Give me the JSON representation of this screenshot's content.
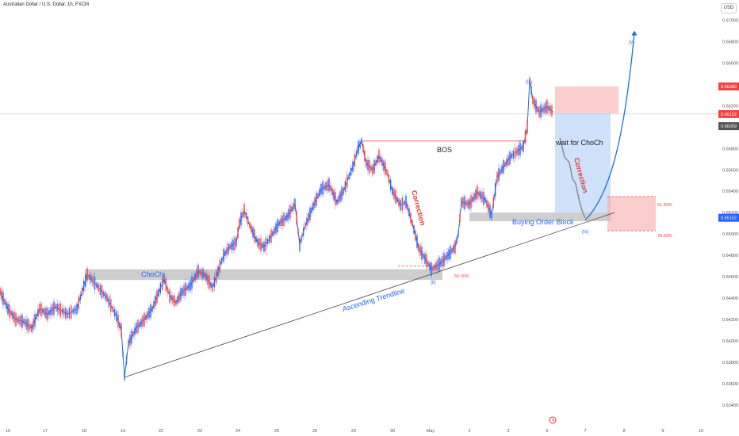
{
  "header": {
    "symbol_title": "Australian Dollar / U.S. Dollar, 1h, FXCM",
    "currency_button": "USD"
  },
  "chart_data": {
    "type": "candlestick",
    "title": "Australian Dollar / U.S. Dollar, 1h, FXCM",
    "ylim": [
      0.6337,
      0.671
    ],
    "y_ticks": [
      "0.67000",
      "0.66800",
      "0.66600",
      "0.66400",
      "0.66200",
      "0.66000",
      "0.65800",
      "0.65600",
      "0.65400",
      "0.65200",
      "0.65000",
      "0.64800",
      "0.64600",
      "0.64400",
      "0.64200",
      "0.64000",
      "0.63800",
      "0.63600",
      "0.63400"
    ],
    "x_ticks": [
      "16",
      "17",
      "18",
      "19",
      "22",
      "23",
      "24",
      "25",
      "26",
      "29",
      "30",
      "May",
      "2",
      "3",
      "6",
      "7",
      "8",
      "9",
      "10"
    ],
    "price_badges": [
      {
        "label": "0.66380",
        "value": 0.6638,
        "color": "#ef4444"
      },
      {
        "label": "0.66122",
        "value": 0.66122,
        "color": "#ef4444"
      },
      {
        "label": "0.66009",
        "value": 0.66009,
        "color": "#555555"
      },
      {
        "label": "0.65152",
        "value": 0.65152,
        "color": "#2962ff"
      }
    ],
    "price_path": [
      [
        0,
        0.6446
      ],
      [
        10,
        0.643
      ],
      [
        20,
        0.642
      ],
      [
        30,
        0.6418
      ],
      [
        40,
        0.6412
      ],
      [
        50,
        0.643
      ],
      [
        60,
        0.6425
      ],
      [
        70,
        0.6432
      ],
      [
        85,
        0.6425
      ],
      [
        97,
        0.643
      ],
      [
        110,
        0.6462
      ],
      [
        122,
        0.6452
      ],
      [
        135,
        0.644
      ],
      [
        147,
        0.6423
      ],
      [
        153,
        0.641
      ],
      [
        157,
        0.6366
      ],
      [
        162,
        0.6398
      ],
      [
        172,
        0.6412
      ],
      [
        182,
        0.642
      ],
      [
        192,
        0.643
      ],
      [
        200,
        0.6445
      ],
      [
        207,
        0.6458
      ],
      [
        214,
        0.6442
      ],
      [
        222,
        0.6436
      ],
      [
        230,
        0.6446
      ],
      [
        240,
        0.6452
      ],
      [
        250,
        0.6465
      ],
      [
        258,
        0.6462
      ],
      [
        268,
        0.645
      ],
      [
        275,
        0.6465
      ],
      [
        282,
        0.648
      ],
      [
        290,
        0.6488
      ],
      [
        298,
        0.6492
      ],
      [
        302,
        0.651
      ],
      [
        308,
        0.6522
      ],
      [
        315,
        0.6508
      ],
      [
        325,
        0.6492
      ],
      [
        333,
        0.6488
      ],
      [
        342,
        0.6498
      ],
      [
        352,
        0.651
      ],
      [
        362,
        0.6516
      ],
      [
        372,
        0.6528
      ],
      [
        378,
        0.649
      ],
      [
        385,
        0.6508
      ],
      [
        395,
        0.6526
      ],
      [
        405,
        0.6542
      ],
      [
        415,
        0.6546
      ],
      [
        425,
        0.653
      ],
      [
        433,
        0.654
      ],
      [
        445,
        0.6563
      ],
      [
        452,
        0.6581
      ],
      [
        456,
        0.6587
      ],
      [
        462,
        0.6566
      ],
      [
        470,
        0.656
      ],
      [
        478,
        0.6573
      ],
      [
        488,
        0.6558
      ],
      [
        495,
        0.654
      ],
      [
        505,
        0.6527
      ],
      [
        512,
        0.653
      ],
      [
        520,
        0.651
      ],
      [
        528,
        0.6487
      ],
      [
        536,
        0.6477
      ],
      [
        544,
        0.6467
      ],
      [
        548,
        0.6469
      ],
      [
        556,
        0.6473
      ],
      [
        566,
        0.6481
      ],
      [
        574,
        0.6488
      ],
      [
        578,
        0.65
      ],
      [
        582,
        0.653
      ],
      [
        592,
        0.6528
      ],
      [
        602,
        0.6539
      ],
      [
        612,
        0.6532
      ],
      [
        620,
        0.6518
      ],
      [
        627,
        0.6553
      ],
      [
        635,
        0.6563
      ],
      [
        645,
        0.6573
      ],
      [
        652,
        0.6577
      ],
      [
        660,
        0.6582
      ],
      [
        665,
        0.66
      ],
      [
        668,
        0.6644
      ],
      [
        672,
        0.6625
      ],
      [
        680,
        0.6614
      ],
      [
        690,
        0.6619
      ],
      [
        698,
        0.6614
      ]
    ],
    "projected_path": [
      [
        706,
        0.659
      ],
      [
        712,
        0.6572
      ],
      [
        718,
        0.6567
      ],
      [
        722,
        0.6552
      ],
      [
        726,
        0.6547
      ],
      [
        730,
        0.6533
      ],
      [
        734,
        0.6522
      ],
      [
        738,
        0.6515
      ]
    ],
    "projected_wave": [
      [
        738,
        0.6513
      ],
      [
        775,
        0.654
      ],
      [
        790,
        0.661
      ],
      [
        800,
        0.6688
      ]
    ],
    "trendline": [
      [
        157,
        0.6366
      ],
      [
        775,
        0.652
      ]
    ],
    "zones": [
      {
        "name": "choch-zone",
        "x": [
          108,
          558
        ],
        "y": [
          0.6457,
          0.6467
        ],
        "color": "gray"
      },
      {
        "name": "buying-order-block",
        "x": [
          592,
          770
        ],
        "y": [
          0.6512,
          0.652
        ],
        "color": "gray"
      },
      {
        "name": "target-zone",
        "x": [
          700,
          780
        ],
        "y": [
          0.6613,
          0.6638
        ],
        "color": "red"
      },
      {
        "name": "stop-zone",
        "x": [
          700,
          770
        ],
        "y": [
          0.652,
          0.6613
        ],
        "color": "blue"
      },
      {
        "name": "fib-zone",
        "x": [
          766,
          827
        ],
        "y": [
          0.6503,
          0.6535
        ],
        "color": "red"
      }
    ],
    "current_price_line": 0.66122,
    "bos_line": {
      "x": [
        456,
        665
      ],
      "y": 0.6587
    },
    "fib_50_line": {
      "x": [
        502,
        560
      ],
      "y": 0.647
    }
  },
  "annotations": {
    "choch": "ChoCh",
    "bos": "BOS",
    "correction": "Correction",
    "ascending_trendline": "Ascending Trendline",
    "buying_order_block": "Buying Order Block",
    "wait_for_choch": "wait for ChoCh",
    "fib_50": "50.00%",
    "fib_618": "61.80%",
    "fib_786": "78.60%",
    "wave_i": "(i)",
    "wave_ii": "(ii)",
    "wave_iii": "(iii)",
    "wave_iv": "(iv)",
    "wave_v": "(v)"
  }
}
